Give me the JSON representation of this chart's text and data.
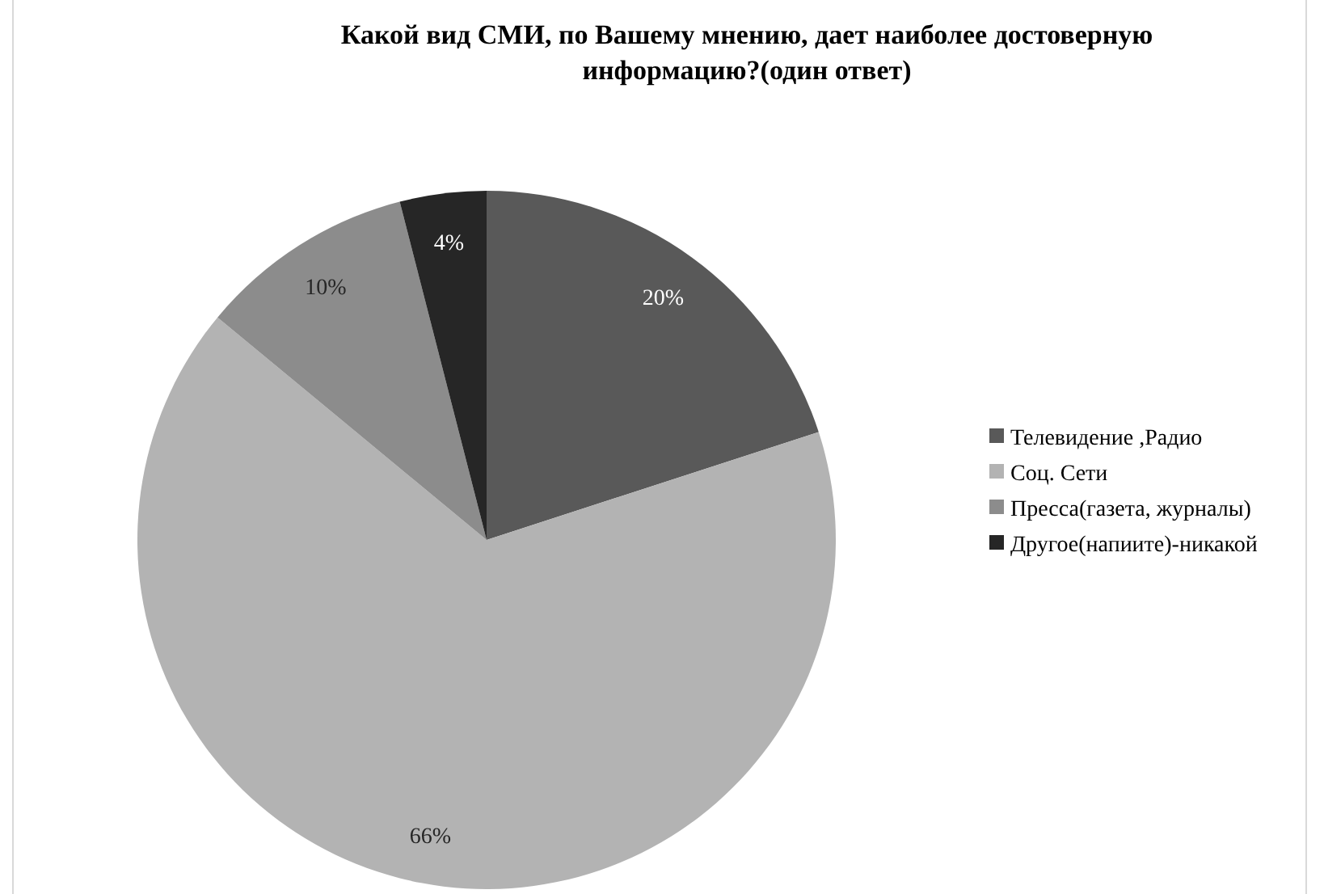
{
  "chart_data": {
    "type": "pie",
    "title": "Какой вид СМИ, по Вашему мнению, дает наиболее достоверную информацию?(один ответ)",
    "categories": [
      "Телевидение ,Радио",
      "Соц. Сети",
      "Пресса(газета, журналы)",
      "Другое(напиите)-никакой"
    ],
    "values": [
      20,
      66,
      10,
      4
    ],
    "colors": [
      "#595959",
      "#b3b3b3",
      "#8c8c8c",
      "#262626"
    ],
    "value_labels": [
      "20%",
      "66%",
      "10%",
      "4%"
    ],
    "legend": "right"
  }
}
